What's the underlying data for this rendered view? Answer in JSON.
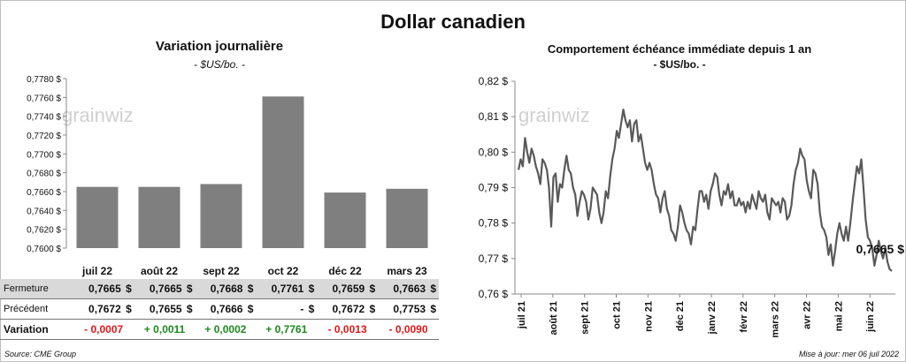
{
  "page": {
    "title": "Dollar canadien",
    "source": "Source: CME Group",
    "updated": "Mise à jour: mer 06 juil 2022",
    "watermark": "grainwiz"
  },
  "left_chart": {
    "title": "Variation  journalière",
    "subtitle": "- $US/bo. -"
  },
  "right_chart": {
    "title": "Comportement échéance immédiate depuis 1 an",
    "subtitle": "- $US/bo. -",
    "last_label": "0,7665 $"
  },
  "table": {
    "fermeture_label": "Fermeture",
    "precedent_label": "Précédent",
    "variation_label": "Variation",
    "dollar": "$",
    "fermeture": [
      "0,7665",
      "0,7665",
      "0,7668",
      "0,7761",
      "0,7659",
      "0,7663"
    ],
    "precedent": [
      "0,7672",
      "0,7655",
      "0,7666",
      "-",
      "0,7672",
      "0,7753"
    ],
    "variation": [
      "- 0,0007",
      "+ 0,0011",
      "+ 0,0002",
      "+ 0,7761",
      "- 0,0013",
      "- 0,0090"
    ]
  },
  "colors": {
    "bar": "#7f7f7f",
    "line": "#595959",
    "positive": "#1e8a1e",
    "negative": "#e01818",
    "shade": "#d9d9d9"
  },
  "chart_data": [
    {
      "type": "bar",
      "categories": [
        "juil 22",
        "août 22",
        "sept 22",
        "oct 22",
        "déc 22",
        "mars 23"
      ],
      "values": [
        0.7665,
        0.7665,
        0.7668,
        0.7761,
        0.7659,
        0.7663
      ],
      "ylim": [
        0.76,
        0.778
      ],
      "yticks": [
        "0,7600 $",
        "0,7620 $",
        "0,7640 $",
        "0,7660 $",
        "0,7680 $",
        "0,7700 $",
        "0,7720 $",
        "0,7740 $",
        "0,7760 $",
        "0,7780 $"
      ],
      "grid": false
    },
    {
      "type": "line",
      "ylim": [
        0.76,
        0.82
      ],
      "yticks": [
        "0,76 $",
        "0,77 $",
        "0,78 $",
        "0,79 $",
        "0,80 $",
        "0,81 $",
        "0,82 $"
      ],
      "xticks": [
        "juil 21",
        "août 21",
        "sept 21",
        "oct 21",
        "nov 21",
        "déc 21",
        "janv 22",
        "févr 22",
        "mars 22",
        "avr 22",
        "mai 22",
        "juin 22"
      ],
      "values": [
        0.795,
        0.798,
        0.796,
        0.804,
        0.8,
        0.797,
        0.801,
        0.799,
        0.796,
        0.794,
        0.791,
        0.798,
        0.797,
        0.795,
        0.79,
        0.779,
        0.793,
        0.794,
        0.786,
        0.791,
        0.79,
        0.795,
        0.799,
        0.795,
        0.794,
        0.79,
        0.788,
        0.782,
        0.786,
        0.789,
        0.788,
        0.786,
        0.781,
        0.784,
        0.79,
        0.789,
        0.788,
        0.783,
        0.78,
        0.783,
        0.789,
        0.787,
        0.793,
        0.798,
        0.801,
        0.806,
        0.804,
        0.808,
        0.812,
        0.809,
        0.807,
        0.809,
        0.803,
        0.808,
        0.809,
        0.803,
        0.805,
        0.801,
        0.797,
        0.795,
        0.797,
        0.795,
        0.791,
        0.788,
        0.787,
        0.783,
        0.787,
        0.789,
        0.784,
        0.782,
        0.778,
        0.777,
        0.775,
        0.779,
        0.785,
        0.783,
        0.78,
        0.778,
        0.777,
        0.774,
        0.779,
        0.778,
        0.784,
        0.789,
        0.789,
        0.786,
        0.788,
        0.784,
        0.789,
        0.791,
        0.794,
        0.793,
        0.788,
        0.785,
        0.789,
        0.788,
        0.791,
        0.787,
        0.789,
        0.785,
        0.785,
        0.787,
        0.785,
        0.786,
        0.783,
        0.786,
        0.784,
        0.788,
        0.786,
        0.784,
        0.789,
        0.787,
        0.786,
        0.788,
        0.783,
        0.781,
        0.787,
        0.786,
        0.785,
        0.786,
        0.783,
        0.787,
        0.786,
        0.781,
        0.782,
        0.785,
        0.791,
        0.795,
        0.797,
        0.801,
        0.799,
        0.798,
        0.792,
        0.789,
        0.787,
        0.795,
        0.794,
        0.791,
        0.783,
        0.779,
        0.778,
        0.776,
        0.771,
        0.774,
        0.768,
        0.772,
        0.777,
        0.78,
        0.777,
        0.775,
        0.779,
        0.775,
        0.78,
        0.786,
        0.791,
        0.796,
        0.794,
        0.798,
        0.79,
        0.781,
        0.776,
        0.775,
        0.773,
        0.768,
        0.771,
        0.775,
        0.772,
        0.77,
        0.773,
        0.769,
        0.767,
        0.7665
      ]
    }
  ]
}
